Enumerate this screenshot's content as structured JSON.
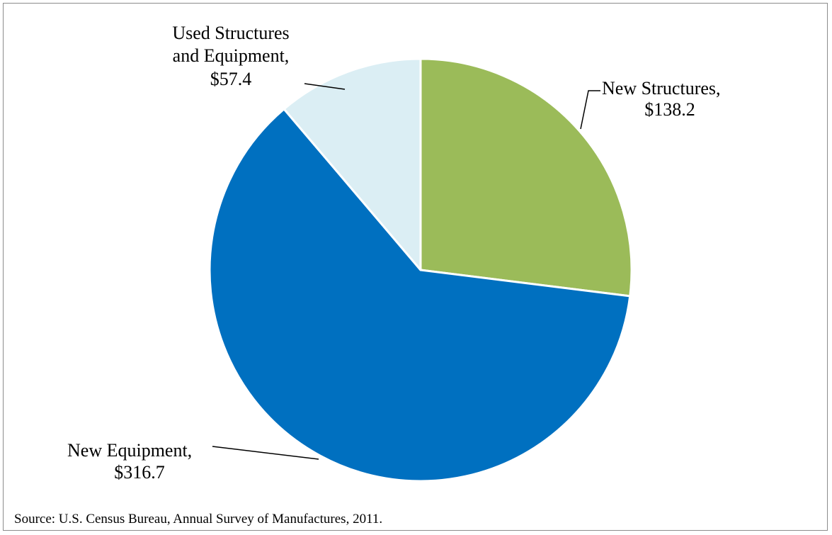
{
  "chart_data": {
    "type": "pie",
    "slices": [
      {
        "name": "New Structures",
        "value": 138.2,
        "label_line1": "New Structures,",
        "label_line2": "$138.2",
        "color": "#9bbb59"
      },
      {
        "name": "New Equipment",
        "value": 316.7,
        "label_line1": "New Equipment,",
        "label_line2": "$316.7",
        "color": "#0070c0"
      },
      {
        "name": "Used Structures and Equipment",
        "value": 57.4,
        "label_line1": "Used Structures",
        "label_line2": "and Equipment,",
        "label_line3": "$57.4",
        "color": "#dbeef4"
      }
    ],
    "legend": "none"
  },
  "source": "Source:  U.S. Census Bureau, Annual Survey of Manufactures, 2011."
}
